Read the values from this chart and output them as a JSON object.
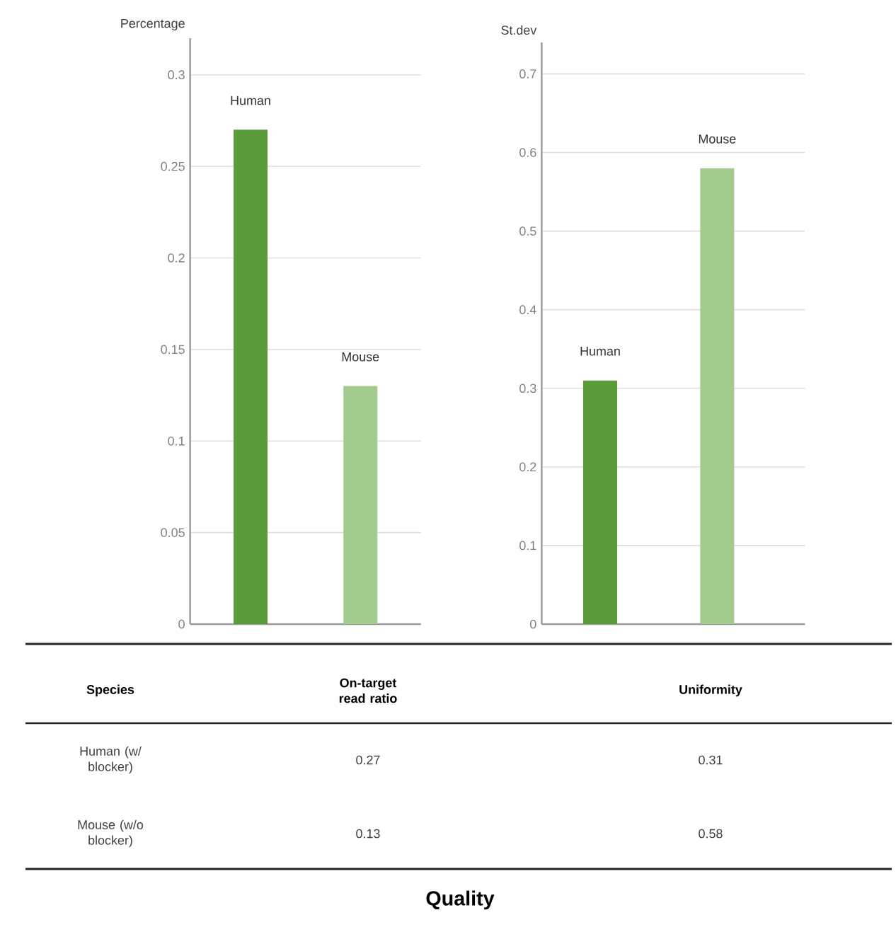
{
  "chart_data": [
    {
      "type": "bar",
      "ylabel": "Percentage",
      "xlabel": "On-target read ratio",
      "categories": [
        "Human",
        "Mouse"
      ],
      "values": [
        0.27,
        0.13
      ],
      "colors": [
        "#5b9b3a",
        "#a3cb8e"
      ],
      "ylim": [
        0,
        0.32
      ],
      "yticks": [
        0,
        0.05,
        0.1,
        0.15,
        0.2,
        0.25,
        0.3
      ],
      "grid": "y",
      "annotations": [
        "Species",
        "Human (w/ blocker)",
        "Mouse (w/o blocker)",
        "Quality",
        "0.27",
        "0.13"
      ]
    },
    {
      "type": "bar",
      "ylabel": "St.dev",
      "xlabel": "Uniformity",
      "categories": [
        "Human",
        "Mouse"
      ],
      "values": [
        0.31,
        0.58
      ],
      "colors": [
        "#5b9b3a",
        "#a3cb8e"
      ],
      "ylim": [
        0,
        0.74
      ],
      "yticks": [
        0,
        0.1,
        0.2,
        0.3,
        0.4,
        0.5,
        0.6,
        0.7
      ],
      "grid": "y",
      "annotations": [
        "0.31",
        "0.58"
      ]
    }
  ]
}
